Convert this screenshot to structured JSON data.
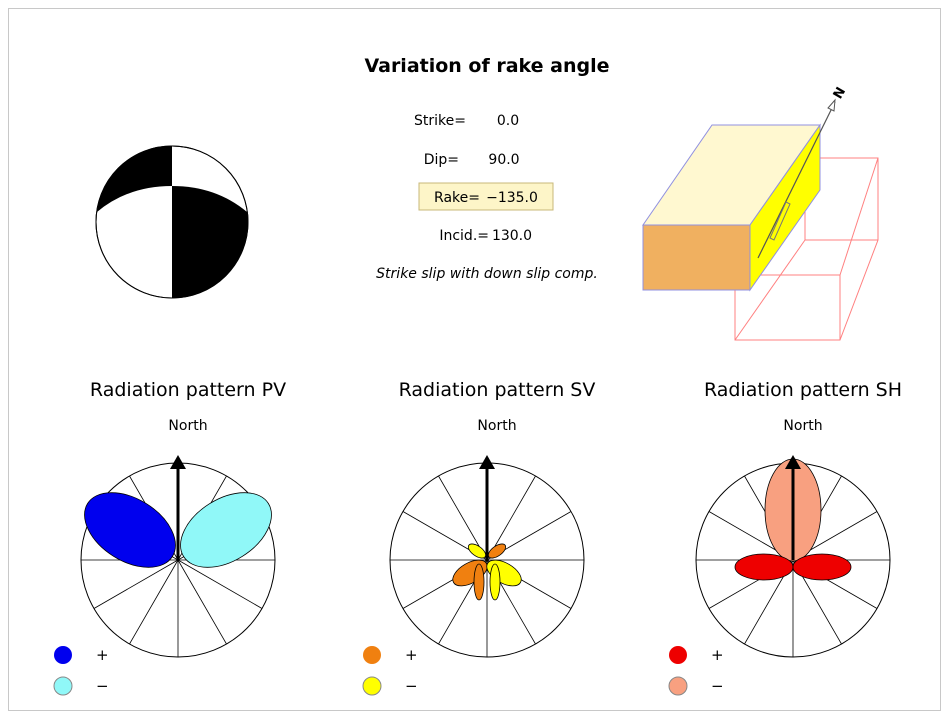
{
  "title": "Variation of rake angle",
  "parameters": [
    {
      "label": "Strike=",
      "value": "0.0"
    },
    {
      "label": "Dip=",
      "value": "90.0"
    },
    {
      "label": "Rake=",
      "value": "−135.0"
    },
    {
      "label": "Incid.=",
      "value": "130.0"
    }
  ],
  "description": "Strike slip with down slip comp.",
  "block_north": "N",
  "panels": [
    {
      "title": "Radiation pattern PV",
      "north": "North",
      "legend": [
        "+",
        "−"
      ]
    },
    {
      "title": "Radiation pattern SV",
      "north": "North",
      "legend": [
        "+",
        "−"
      ]
    },
    {
      "title": "Radiation pattern SH",
      "north": "North",
      "legend": [
        "+",
        "−"
      ]
    }
  ]
}
